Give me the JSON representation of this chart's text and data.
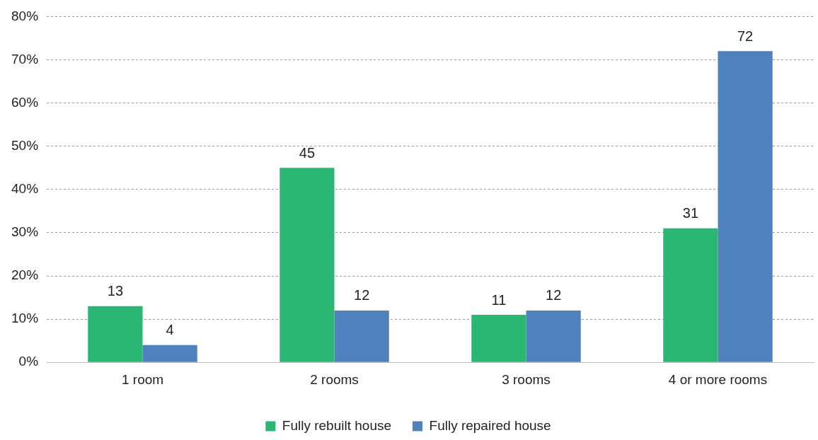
{
  "chart_data": {
    "type": "bar",
    "categories": [
      "1 room",
      "2 rooms",
      "3 rooms",
      "4 or more rooms"
    ],
    "series": [
      {
        "name": "Fully rebuilt house",
        "color": "#2bb673",
        "values": [
          13,
          45,
          11,
          31
        ]
      },
      {
        "name": "Fully repaired house",
        "color": "#4f81bd",
        "values": [
          4,
          12,
          12,
          72
        ]
      }
    ],
    "ylim": [
      0,
      80
    ],
    "yticks": [
      {
        "value": 0,
        "label": "0%"
      },
      {
        "value": 10,
        "label": "10%"
      },
      {
        "value": 20,
        "label": "20%"
      },
      {
        "value": 30,
        "label": "30%"
      },
      {
        "value": 40,
        "label": "40%"
      },
      {
        "value": 50,
        "label": "50%"
      },
      {
        "value": 60,
        "label": "60%"
      },
      {
        "value": 70,
        "label": "70%"
      },
      {
        "value": 80,
        "label": "80%"
      }
    ],
    "grid": "y",
    "legend": "bottom",
    "data_labels": true
  }
}
